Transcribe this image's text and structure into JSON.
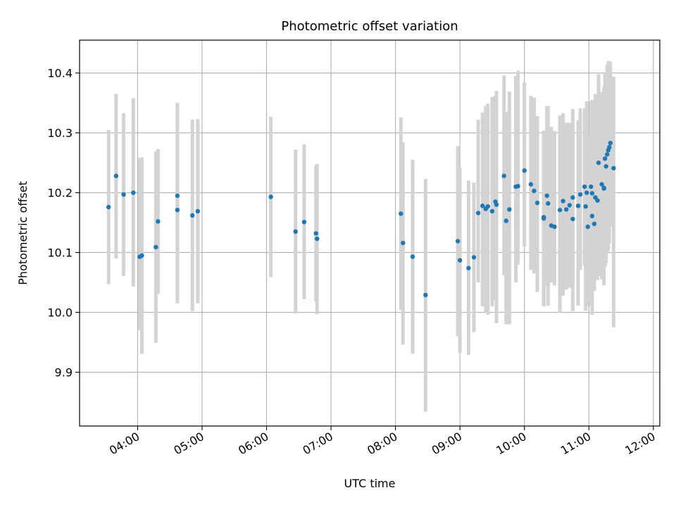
{
  "chart_data": {
    "type": "scatter",
    "title": "Photometric offset variation",
    "xlabel": "UTC time",
    "ylabel": "Photometric offset",
    "x_is_time": true,
    "xlim": [
      "03:06",
      "12:06"
    ],
    "ylim": [
      9.81,
      10.455
    ],
    "grid": true,
    "x_ticks": [
      "04:00",
      "05:00",
      "06:00",
      "07:00",
      "08:00",
      "09:00",
      "10:00",
      "11:00",
      "12:00"
    ],
    "y_ticks": [
      "9.9",
      "10.0",
      "10.1",
      "10.2",
      "10.3",
      "10.4"
    ],
    "colors": {
      "points": "#1f77b4",
      "error_bars": "#d3d3d3",
      "grid": "#b0b0b0"
    },
    "series": [
      {
        "x": [
          "03:33",
          "03:40",
          "03:47",
          "03:56",
          "04:02",
          "04:04",
          "04:17",
          "04:19",
          "04:37",
          "04:37",
          "04:51",
          "04:56",
          "06:04",
          "06:27",
          "06:35",
          "06:46",
          "06:47",
          "08:05",
          "08:07",
          "08:16",
          "08:28",
          "08:58",
          "09:00",
          "09:08",
          "09:13",
          "09:17",
          "09:21",
          "09:24",
          "09:26",
          "09:30",
          "09:33",
          "09:34",
          "09:41",
          "09:43",
          "09:46",
          "09:52",
          "09:54",
          "10:00",
          "10:06",
          "10:09",
          "10:12",
          "10:18",
          "10:18",
          "10:21",
          "10:22",
          "10:25",
          "10:28",
          "10:33",
          "10:36",
          "10:39",
          "10:42",
          "10:45",
          "10:45",
          "10:50",
          "10:50",
          "10:52",
          "10:56",
          "10:57",
          "10:58",
          "10:59",
          "11:02",
          "11:03",
          "11:03",
          "11:05",
          "11:06",
          "11:08",
          "11:09",
          "11:12",
          "11:14",
          "11:14",
          "11:15",
          "11:16",
          "11:17",
          "11:18",
          "11:19",
          "11:20",
          "11:23"
        ],
        "y": [
          10.176,
          10.228,
          10.197,
          10.2,
          10.093,
          10.095,
          10.109,
          10.152,
          10.195,
          10.171,
          10.162,
          10.169,
          10.193,
          10.135,
          10.151,
          10.132,
          10.123,
          10.165,
          10.116,
          10.093,
          10.029,
          10.119,
          10.087,
          10.074,
          10.092,
          10.166,
          10.178,
          10.173,
          10.177,
          10.169,
          10.185,
          10.18,
          10.228,
          10.153,
          10.172,
          10.21,
          10.211,
          10.237,
          10.214,
          10.203,
          10.183,
          10.157,
          10.159,
          10.195,
          10.182,
          10.145,
          10.143,
          10.171,
          10.186,
          10.172,
          10.179,
          10.192,
          10.156,
          10.178,
          10.178,
          10.197,
          10.21,
          10.177,
          10.2,
          10.143,
          10.21,
          10.161,
          10.199,
          10.148,
          10.192,
          10.187,
          10.25,
          10.214,
          10.208,
          10.207,
          10.257,
          10.244,
          10.264,
          10.271,
          10.276,
          10.283,
          10.241
        ],
        "y_low": [
          10.047,
          10.09,
          10.061,
          10.043,
          9.97,
          9.931,
          9.949,
          10.031,
          10.042,
          10.015,
          10.002,
          10.015,
          10.059,
          9.998,
          10.022,
          10.018,
          9.997,
          10.004,
          9.946,
          9.931,
          9.834,
          9.96,
          9.932,
          9.929,
          9.967,
          10.05,
          10.01,
          10.0,
          9.996,
          10.01,
          10.02,
          9.982,
          10.062,
          9.98,
          9.98,
          10.05,
          10.08,
          10.11,
          10.071,
          10.065,
          10.034,
          10.012,
          10.01,
          10.045,
          10.011,
          10.05,
          10.045,
          10.0,
          10.028,
          10.038,
          10.041,
          10.054,
          10.002,
          10.035,
          10.011,
          10.071,
          10.078,
          10.003,
          10.01,
          10.018,
          10.011,
          9.996,
          10.02,
          10.036,
          10.055,
          10.054,
          10.061,
          10.055,
          10.08,
          10.045,
          10.076,
          10.082,
          10.098,
          10.103,
          10.115,
          10.143,
          9.975
        ],
        "y_high": [
          10.305,
          10.365,
          10.333,
          10.358,
          10.258,
          10.259,
          10.269,
          10.273,
          10.35,
          10.328,
          10.322,
          10.323,
          10.327,
          10.272,
          10.281,
          10.245,
          10.248,
          10.326,
          10.284,
          10.255,
          10.223,
          10.278,
          10.242,
          10.22,
          10.217,
          10.322,
          10.334,
          10.345,
          10.349,
          10.36,
          10.362,
          10.37,
          10.396,
          10.335,
          10.369,
          10.395,
          10.404,
          10.384,
          10.362,
          10.359,
          10.328,
          10.302,
          10.304,
          10.345,
          10.345,
          10.31,
          10.303,
          10.329,
          10.333,
          10.317,
          10.317,
          10.34,
          10.306,
          10.321,
          10.316,
          10.341,
          10.341,
          10.336,
          10.353,
          10.299,
          10.353,
          10.314,
          10.355,
          10.31,
          10.365,
          10.325,
          10.398,
          10.368,
          10.377,
          10.357,
          10.4,
          10.385,
          10.414,
          10.42,
          10.42,
          10.418,
          10.394
        ]
      }
    ]
  }
}
